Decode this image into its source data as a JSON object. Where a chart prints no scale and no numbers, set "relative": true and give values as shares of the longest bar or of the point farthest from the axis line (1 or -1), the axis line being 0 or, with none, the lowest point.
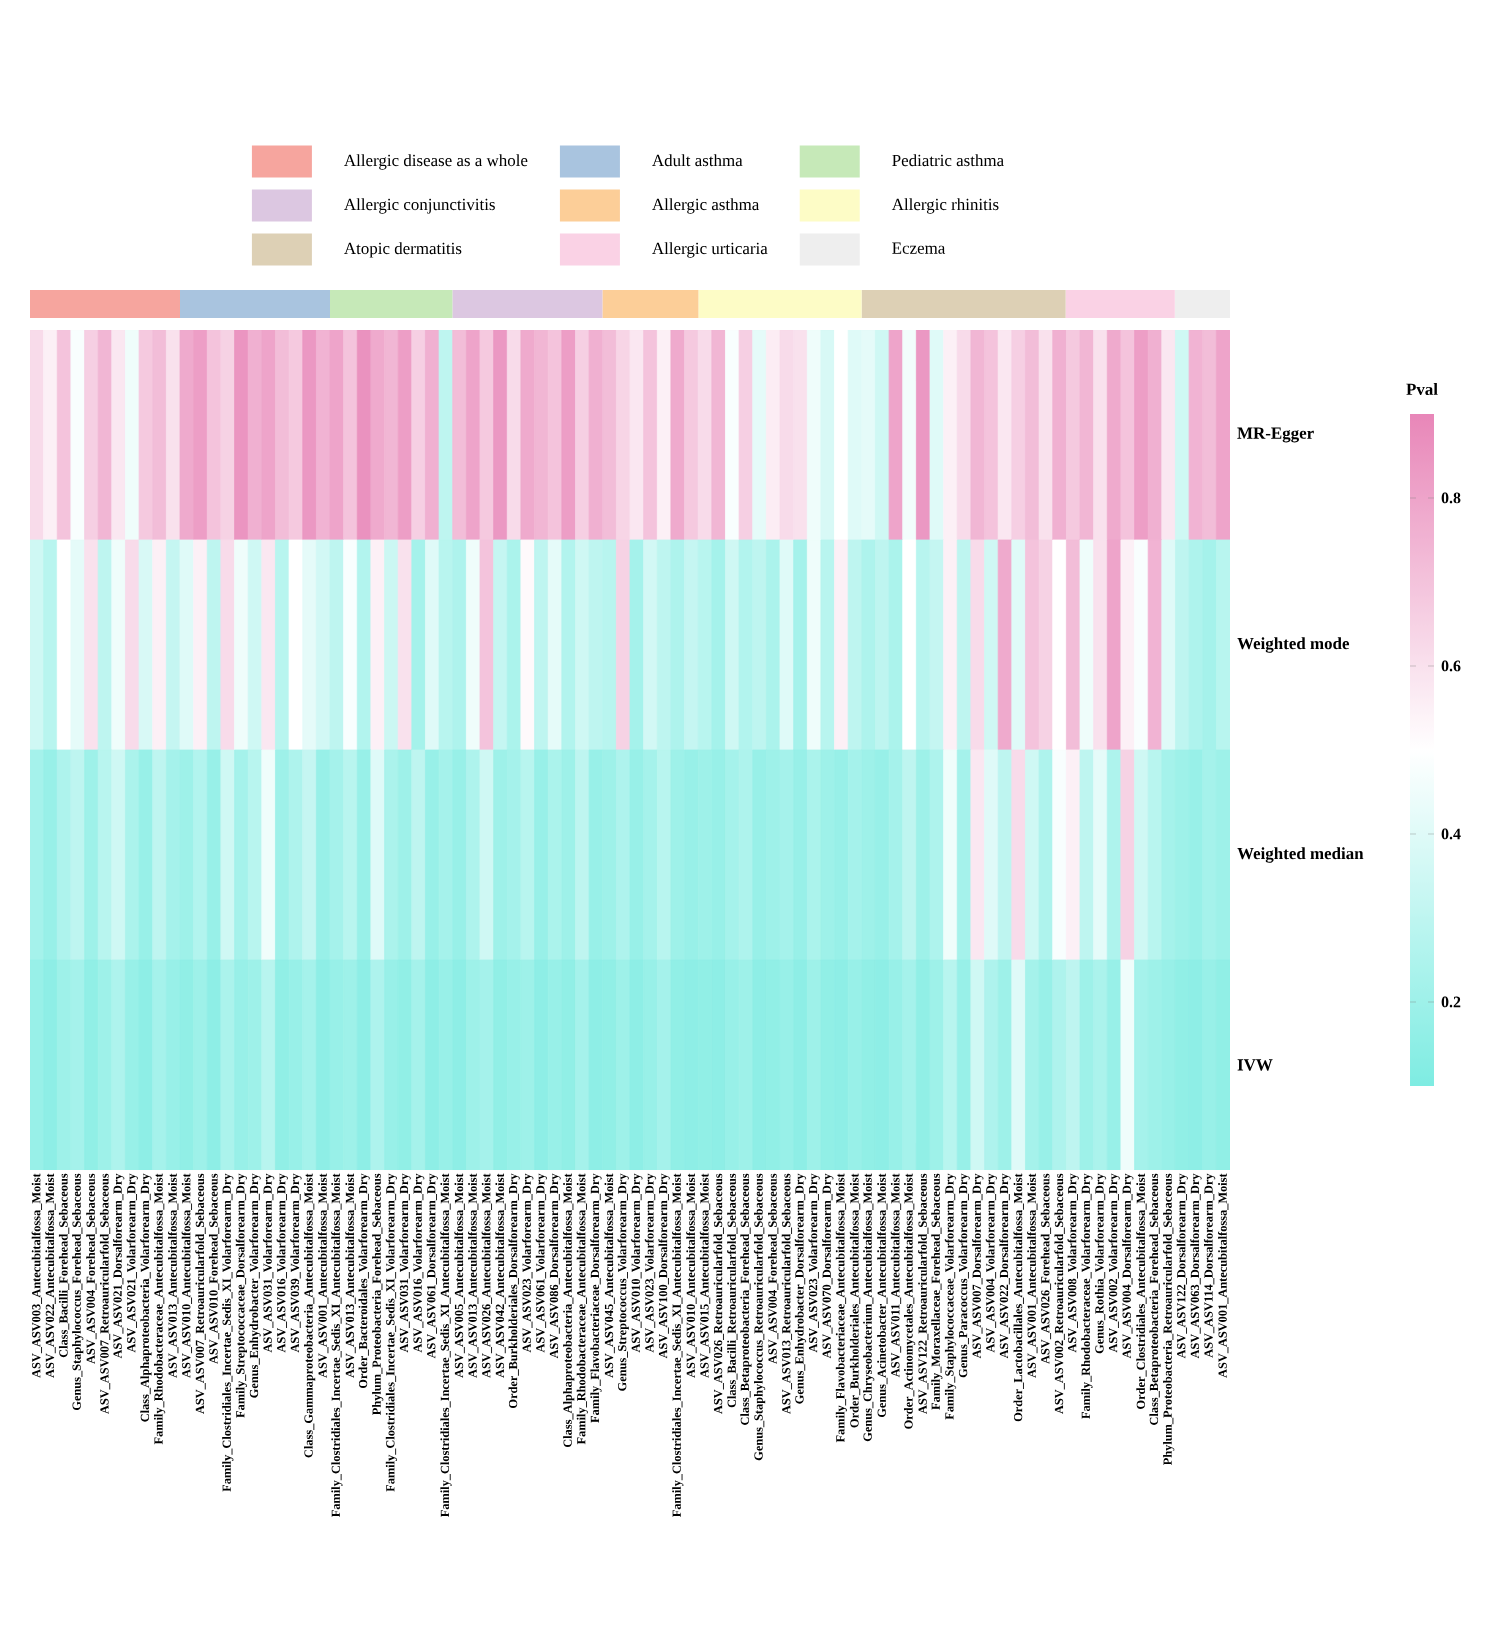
{
  "chart_data": [
    {
      "type": "heatmap",
      "categories": [
        "ASV_ASV003_Antecubitalfossa_Moist",
        "ASV_ASV022_Antecubitalfossa_Moist",
        "Class_Bacilli_Forehead_Sebaceous",
        "Genus_Staphylococcus_Forehead_Sebaceous",
        "ASV_ASV004_Forehead_Sebaceous",
        "ASV_ASV007_Retroauricularfold_Sebaceous",
        "ASV_ASV021_Dorsalforearm_Dry",
        "ASV_ASV021_Volarforearm_Dry",
        "Class_Alphaproteobacteria_Volarforearm_Dry",
        "Family_Rhodobacteraceae_Antecubitalfossa_Moist",
        "ASV_ASV013_Antecubitalfossa_Moist",
        "ASV_ASV010_Antecubitalfossa_Moist",
        "ASV_ASV007_Retroauricularfold_Sebaceous",
        "ASV_ASV010_Forehead_Sebaceous",
        "Family_Clostridiales_Incertae_Sedis_XI_Volarforearm_Dry",
        "Family_Streptococcaceae_Dorsalforearm_Dry",
        "Genus_Enhydrobacter_Volarforearm_Dry",
        "ASV_ASV031_Volarforearm_Dry",
        "ASV_ASV016_Volarforearm_Dry",
        "ASV_ASV039_Volarforearm_Dry",
        "Class_Gammaproteobacteria_Antecubitalfossa_Moist",
        "ASV_ASV001_Antecubitalfossa_Moist",
        "Family_Clostridiales_Incertae_Sedis_XI_Antecubitalfossa_Moist",
        "ASV_ASV013_Antecubitalfossa_Moist",
        "Order_Bacteroidales_Volarforearm_Dry",
        "Phylum_Proteobacteria_Forehead_Sebaceous",
        "Family_Clostridiales_Incertae_Sedis_XI_Volarforearm_Dry",
        "ASV_ASV031_Volarforearm_Dry",
        "ASV_ASV016_Volarforearm_Dry",
        "ASV_ASV061_Dorsalforearm_Dry",
        "Family_Clostridiales_Incertae_Sedis_XI_Antecubitalfossa_Moist",
        "ASV_ASV005_Antecubitalfossa_Moist",
        "ASV_ASV013_Antecubitalfossa_Moist",
        "ASV_ASV026_Antecubitalfossa_Moist",
        "ASV_ASV042_Antecubitalfossa_Moist",
        "Order_Burkholderiales_Dorsalforearm_Dry",
        "ASV_ASV023_Volarforearm_Dry",
        "ASV_ASV061_Volarforearm_Dry",
        "ASV_ASV086_Dorsalforearm_Dry",
        "Class_Alphaproteobacteria_Antecubitalfossa_Moist",
        "Family_Rhodobacteraceae_Antecubitalfossa_Moist",
        "Family_Flavobacteriaceae_Dorsalforearm_Dry",
        "ASV_ASV045_Antecubitalfossa_Moist",
        "Genus_Streptococcus_Volarforearm_Dry",
        "ASV_ASV010_Volarforearm_Dry",
        "ASV_ASV023_Volarforearm_Dry",
        "ASV_ASV100_Dorsalforearm_Dry",
        "Family_Clostridiales_Incertae_Sedis_XI_Antecubitalfossa_Moist",
        "ASV_ASV010_Antecubitalfossa_Moist",
        "ASV_ASV015_Antecubitalfossa_Moist",
        "ASV_ASV026_Retroauricularfold_Sebaceous",
        "Class_Bacilli_Retroauricularfold_Sebaceous",
        "Class_Betaproteobacteria_Forehead_Sebaceous",
        "Genus_Staphylococcus_Retroauricularfold_Sebaceous",
        "ASV_ASV004_Forehead_Sebaceous",
        "ASV_ASV013_Retroauricularfold_Sebaceous",
        "Genus_Enhydrobacter_Dorsalforearm_Dry",
        "ASV_ASV023_Volarforearm_Dry",
        "ASV_ASV070_Dorsalforearm_Dry",
        "Family_Flavobacteriaceae_Antecubitalfossa_Moist",
        "Order_Burkholderiales_Antecubitalfossa_Moist",
        "Genus_Chryseobacterium_Antecubitalfossa_Moist",
        "Genus_Acinetobacter_Antecubitalfossa_Moist",
        "ASV_ASV011_Antecubitalfossa_Moist",
        "Order_Actinomycetales_Antecubitalfossa_Moist",
        "ASV_ASV122_Retroauricularfold_Sebaceous",
        "Family_Moraxellaceae_Forehead_Sebaceous",
        "Family_Staphylococcaceae_Volarforearm_Dry",
        "Genus_Paracoccus_Volarforearm_Dry",
        "ASV_ASV007_Dorsalforearm_Dry",
        "ASV_ASV004_Volarforearm_Dry",
        "ASV_ASV022_Dorsalforearm_Dry",
        "Order_Lactobacillales_Antecubitalfossa_Moist",
        "ASV_ASV001_Antecubitalfossa_Moist",
        "ASV_ASV026_Forehead_Sebaceous",
        "ASV_ASV002_Retroauricularfold_Sebaceous",
        "ASV_ASV008_Volarforearm_Dry",
        "Family_Rhodobacteraceae_Volarforearm_Dry",
        "Genus_Rothia_Volarforearm_Dry",
        "ASV_ASV002_Volarforearm_Dry",
        "ASV_ASV004_Dorsalforearm_Dry",
        "Order_Clostridiales_Antecubitalfossa_Moist",
        "Class_Betaproteobacteria_Forehead_Sebaceous",
        "Phylum_Proteobacteria_Retroauricularfold_Sebaceous",
        "ASV_ASV122_Dorsalforearm_Dry",
        "ASV_ASV063_Dorsalforearm_Dry",
        "ASV_ASV114_Dorsalforearm_Dry",
        "ASV_ASV001_Antecubitalfossa_Moist"
      ],
      "y_categories": [
        "MR-Egger",
        "Weighted mode",
        "Weighted median",
        "IVW"
      ],
      "cells": [
        [
          0.62,
          0.55,
          0.7,
          0.48,
          0.66,
          0.74,
          0.58,
          0.45,
          0.68,
          0.72,
          0.6,
          0.78,
          0.82,
          0.7,
          0.65,
          0.85,
          0.76,
          0.8,
          0.72,
          0.68,
          0.84,
          0.75,
          0.8,
          0.7,
          0.86,
          0.78,
          0.74,
          0.82,
          0.66,
          0.76,
          0.3,
          0.72,
          0.8,
          0.68,
          0.84,
          0.62,
          0.78,
          0.74,
          0.7,
          0.82,
          0.66,
          0.76,
          0.72,
          0.64,
          0.58,
          0.7,
          0.55,
          0.78,
          0.68,
          0.62,
          0.74,
          0.48,
          0.66,
          0.42,
          0.56,
          0.62,
          0.6,
          0.45,
          0.38,
          0.5,
          0.4,
          0.42,
          0.35,
          0.8,
          0.46,
          0.84,
          0.4,
          0.55,
          0.62,
          0.74,
          0.7,
          0.58,
          0.66,
          0.72,
          0.6,
          0.76,
          0.68,
          0.74,
          0.6,
          0.78,
          0.7,
          0.82,
          0.76,
          0.58,
          0.35,
          0.75,
          0.72,
          0.8
        ],
        [
          0.35,
          0.28,
          0.5,
          0.42,
          0.6,
          0.3,
          0.45,
          0.62,
          0.38,
          0.55,
          0.32,
          0.4,
          0.55,
          0.3,
          0.62,
          0.45,
          0.35,
          0.58,
          0.28,
          0.5,
          0.42,
          0.36,
          0.3,
          0.48,
          0.26,
          0.55,
          0.34,
          0.6,
          0.22,
          0.4,
          0.28,
          0.25,
          0.45,
          0.7,
          0.32,
          0.24,
          0.52,
          0.3,
          0.42,
          0.26,
          0.35,
          0.3,
          0.28,
          0.65,
          0.22,
          0.36,
          0.3,
          0.25,
          0.32,
          0.28,
          0.22,
          0.35,
          0.26,
          0.3,
          0.24,
          0.4,
          0.22,
          0.45,
          0.28,
          0.55,
          0.3,
          0.25,
          0.3,
          0.24,
          0.5,
          0.28,
          0.32,
          0.55,
          0.3,
          0.62,
          0.35,
          0.78,
          0.4,
          0.7,
          0.65,
          0.5,
          0.72,
          0.45,
          0.6,
          0.8,
          0.55,
          0.48,
          0.75,
          0.4,
          0.3,
          0.25,
          0.22,
          0.28
        ],
        [
          0.22,
          0.18,
          0.25,
          0.3,
          0.2,
          0.28,
          0.35,
          0.24,
          0.18,
          0.3,
          0.22,
          0.2,
          0.26,
          0.18,
          0.35,
          0.22,
          0.28,
          0.45,
          0.2,
          0.25,
          0.32,
          0.18,
          0.22,
          0.28,
          0.18,
          0.4,
          0.24,
          0.2,
          0.3,
          0.18,
          0.22,
          0.18,
          0.25,
          0.35,
          0.2,
          0.22,
          0.28,
          0.18,
          0.24,
          0.2,
          0.3,
          0.18,
          0.2,
          0.25,
          0.18,
          0.22,
          0.28,
          0.2,
          0.18,
          0.2,
          0.18,
          0.22,
          0.25,
          0.18,
          0.2,
          0.22,
          0.18,
          0.24,
          0.2,
          0.18,
          0.22,
          0.2,
          0.18,
          0.22,
          0.3,
          0.2,
          0.25,
          0.45,
          0.22,
          0.58,
          0.4,
          0.3,
          0.62,
          0.35,
          0.25,
          0.48,
          0.55,
          0.3,
          0.42,
          0.25,
          0.65,
          0.35,
          0.28,
          0.22,
          0.2,
          0.18,
          0.22,
          0.2
        ],
        [
          0.18,
          0.15,
          0.2,
          0.22,
          0.16,
          0.2,
          0.25,
          0.18,
          0.15,
          0.22,
          0.18,
          0.16,
          0.2,
          0.15,
          0.24,
          0.18,
          0.2,
          0.28,
          0.16,
          0.18,
          0.22,
          0.15,
          0.18,
          0.2,
          0.15,
          0.25,
          0.18,
          0.16,
          0.22,
          0.15,
          0.18,
          0.15,
          0.2,
          0.22,
          0.16,
          0.18,
          0.2,
          0.15,
          0.18,
          0.16,
          0.22,
          0.15,
          0.16,
          0.2,
          0.15,
          0.18,
          0.22,
          0.16,
          0.15,
          0.16,
          0.15,
          0.18,
          0.2,
          0.15,
          0.16,
          0.18,
          0.15,
          0.2,
          0.16,
          0.15,
          0.18,
          0.16,
          0.15,
          0.18,
          0.22,
          0.16,
          0.2,
          0.28,
          0.18,
          0.35,
          0.25,
          0.2,
          0.4,
          0.22,
          0.18,
          0.25,
          0.3,
          0.2,
          0.24,
          0.18,
          0.45,
          0.22,
          0.2,
          0.18,
          0.16,
          0.15,
          0.18,
          0.16
        ]
      ],
      "clabel": "Pval",
      "clim": [
        0.1,
        0.9
      ],
      "cticks": [
        0.2,
        0.4,
        0.6,
        0.8
      ]
    },
    {
      "type": "bar",
      "orientation": "horizontal",
      "stacked": true,
      "relative": true,
      "categories": [
        null
      ],
      "series": [
        {
          "name": "Allergic disease as a whole",
          "color": "#f6a59e",
          "values": [
            0.125
          ]
        },
        {
          "name": "Adult asthma",
          "color": "#a9c4df",
          "values": [
            0.125
          ]
        },
        {
          "name": "Pediatric asthma",
          "color": "#c6e9b8",
          "values": [
            0.102
          ]
        },
        {
          "name": "Allergic conjunctivitis",
          "color": "#dcc7e1",
          "values": [
            0.125
          ]
        },
        {
          "name": "Allergic asthma",
          "color": "#fcce98",
          "values": [
            0.08
          ]
        },
        {
          "name": "Allergic rhinitis",
          "color": "#fdfcc6",
          "values": [
            0.136
          ]
        },
        {
          "name": "Atopic dermatitis",
          "color": "#ddd0b5",
          "values": [
            0.17
          ]
        },
        {
          "name": "Allergic urticaria",
          "color": "#fad2e5",
          "values": [
            0.091
          ]
        },
        {
          "name": "Eczema",
          "color": "#eeeeee",
          "values": [
            0.046
          ]
        }
      ],
      "legend": "top"
    }
  ]
}
